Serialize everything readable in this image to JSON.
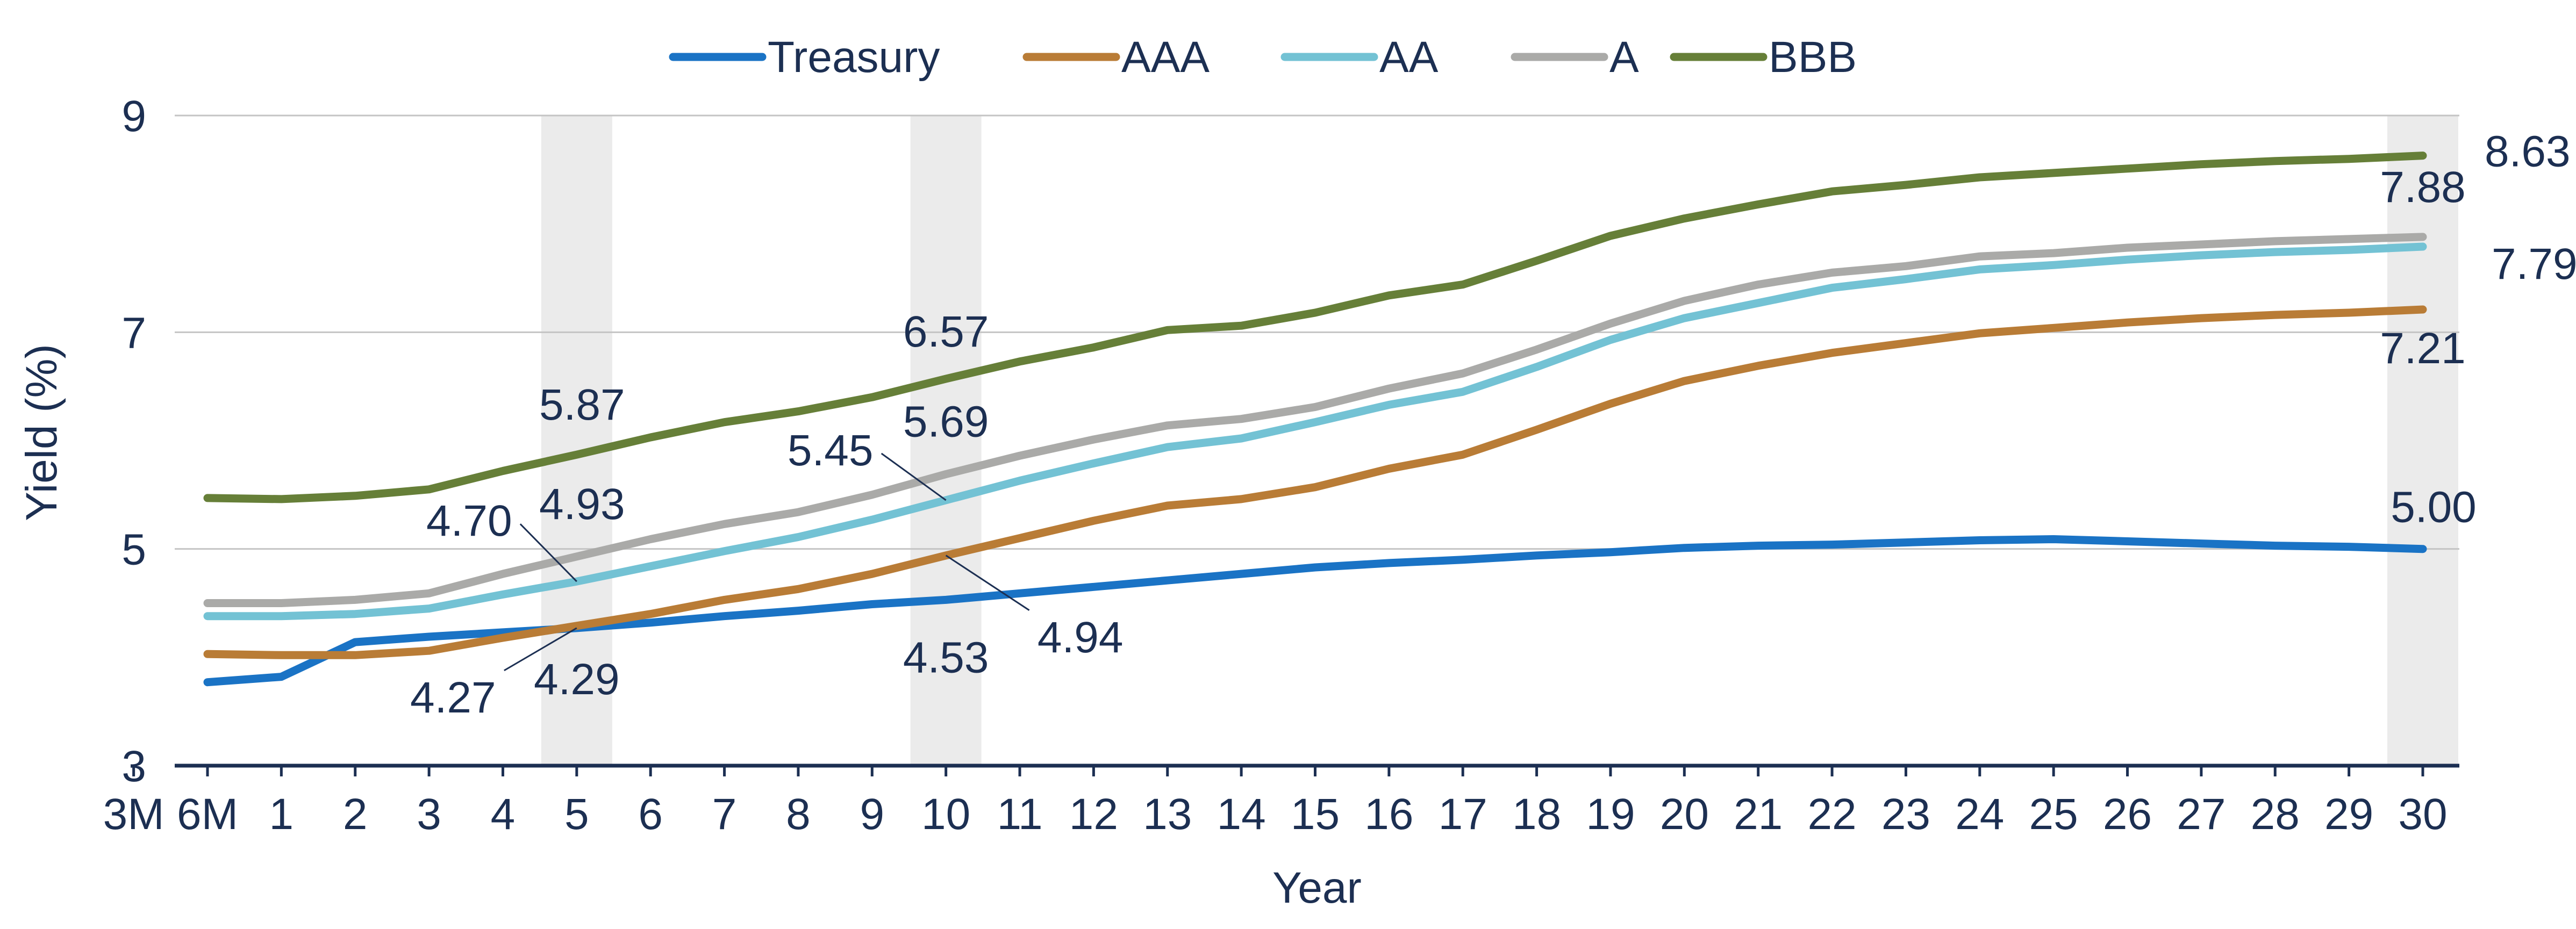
{
  "chart_data": {
    "type": "line",
    "xlabel": "Year",
    "ylabel": "Yield (%)",
    "categories": [
      "3M",
      "6M",
      "1",
      "2",
      "3",
      "4",
      "5",
      "6",
      "7",
      "8",
      "9",
      "10",
      "11",
      "12",
      "13",
      "14",
      "15",
      "16",
      "17",
      "18",
      "19",
      "20",
      "21",
      "22",
      "23",
      "24",
      "25",
      "26",
      "27",
      "28",
      "29",
      "30"
    ],
    "ylim": [
      3,
      9
    ],
    "yticks": [
      3,
      5,
      7,
      9
    ],
    "grid": true,
    "legend_position": "top",
    "highlight_categories": [
      "5",
      "10",
      "30"
    ],
    "series": [
      {
        "name": "Treasury",
        "color": "#1a73c5",
        "values": [
          null,
          3.77,
          3.82,
          4.14,
          4.19,
          4.23,
          4.27,
          4.32,
          4.38,
          4.43,
          4.49,
          4.53,
          4.59,
          4.65,
          4.71,
          4.77,
          4.83,
          4.87,
          4.9,
          4.94,
          4.97,
          5.01,
          5.03,
          5.04,
          5.06,
          5.08,
          5.09,
          5.07,
          5.05,
          5.03,
          5.02,
          5.0
        ]
      },
      {
        "name": "AAA",
        "color": "#b97c36",
        "values": [
          null,
          4.03,
          4.02,
          4.02,
          4.06,
          4.18,
          4.29,
          4.4,
          4.53,
          4.63,
          4.77,
          4.94,
          5.1,
          5.26,
          5.4,
          5.46,
          5.57,
          5.74,
          5.87,
          6.1,
          6.34,
          6.55,
          6.69,
          6.81,
          6.9,
          6.99,
          7.04,
          7.09,
          7.13,
          7.16,
          7.18,
          7.21
        ]
      },
      {
        "name": "AA",
        "color": "#73c2d4",
        "values": [
          null,
          4.38,
          4.38,
          4.4,
          4.45,
          4.58,
          4.7,
          4.84,
          4.98,
          5.11,
          5.27,
          5.45,
          5.63,
          5.79,
          5.94,
          6.02,
          6.17,
          6.33,
          6.45,
          6.68,
          6.93,
          7.13,
          7.27,
          7.41,
          7.49,
          7.58,
          7.62,
          7.67,
          7.71,
          7.74,
          7.76,
          7.79
        ]
      },
      {
        "name": "A",
        "color": "#aaaaa8",
        "values": [
          null,
          4.5,
          4.5,
          4.53,
          4.59,
          4.77,
          4.93,
          5.09,
          5.23,
          5.34,
          5.5,
          5.69,
          5.86,
          6.01,
          6.14,
          6.2,
          6.31,
          6.48,
          6.62,
          6.84,
          7.08,
          7.29,
          7.44,
          7.55,
          7.61,
          7.7,
          7.73,
          7.78,
          7.81,
          7.84,
          7.86,
          7.88
        ]
      },
      {
        "name": "BBB",
        "color": "#667f38",
        "values": [
          null,
          5.47,
          5.46,
          5.49,
          5.55,
          5.72,
          5.87,
          6.03,
          6.17,
          6.27,
          6.4,
          6.57,
          6.73,
          6.86,
          7.02,
          7.06,
          7.18,
          7.34,
          7.44,
          7.66,
          7.89,
          8.05,
          8.18,
          8.3,
          8.36,
          8.43,
          8.47,
          8.51,
          8.55,
          8.58,
          8.6,
          8.63
        ]
      }
    ],
    "annotations": [
      {
        "text": "5.87",
        "series": "BBB",
        "category": "5"
      },
      {
        "text": "6.57",
        "series": "BBB",
        "category": "10"
      },
      {
        "text": "8.63",
        "series": "BBB",
        "category": "30"
      },
      {
        "text": "4.93",
        "series": "A",
        "category": "5"
      },
      {
        "text": "5.69",
        "series": "A",
        "category": "10"
      },
      {
        "text": "7.88",
        "series": "A",
        "category": "30"
      },
      {
        "text": "4.70",
        "series": "AA",
        "category": "5"
      },
      {
        "text": "5.45",
        "series": "AA",
        "category": "10"
      },
      {
        "text": "7.79",
        "series": "AA",
        "category": "30"
      },
      {
        "text": "4.29",
        "series": "AAA",
        "category": "5"
      },
      {
        "text": "4.94",
        "series": "AAA",
        "category": "10"
      },
      {
        "text": "7.21",
        "series": "AAA",
        "category": "30"
      },
      {
        "text": "4.27",
        "series": "Treasury",
        "category": "5"
      },
      {
        "text": "4.53",
        "series": "Treasury",
        "category": "10"
      },
      {
        "text": "5.00",
        "series": "Treasury",
        "category": "30"
      }
    ]
  }
}
